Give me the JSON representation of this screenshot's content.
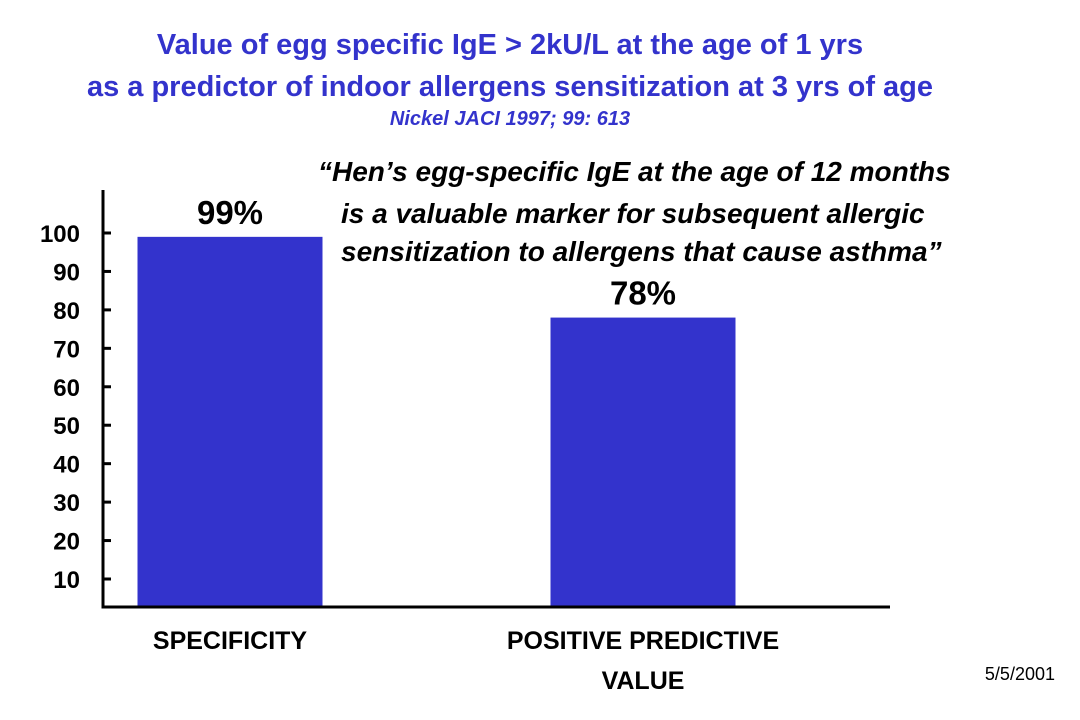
{
  "title_line1": "Value of egg specific IgE > 2kU/L at the age of 1 yrs",
  "title_line2": "as a predictor of indoor allergens sensitization at 3 yrs of age",
  "citation": "Nickel   JACI 1997; 99: 613",
  "quote_lines": [
    "“Hen’s egg-specific IgE at the age of 12 months",
    "is a valuable marker for subsequent allergic",
    "sensitization to allergens that cause asthma”"
  ],
  "date": "5/5/2001",
  "colors": {
    "title": "#3333cc",
    "bar": "#3333cc",
    "axis": "#000000"
  },
  "chart_data": {
    "type": "bar",
    "categories": [
      [
        "SPECIFICITY"
      ],
      [
        "POSITIVE PREDICTIVE",
        "VALUE"
      ]
    ],
    "values": [
      99,
      78
    ],
    "data_labels": [
      "99%",
      "78%"
    ],
    "yticks": [
      10,
      20,
      30,
      40,
      50,
      60,
      70,
      80,
      90,
      100
    ],
    "ylim": [
      0,
      110
    ],
    "grid": false,
    "legend": "none"
  }
}
